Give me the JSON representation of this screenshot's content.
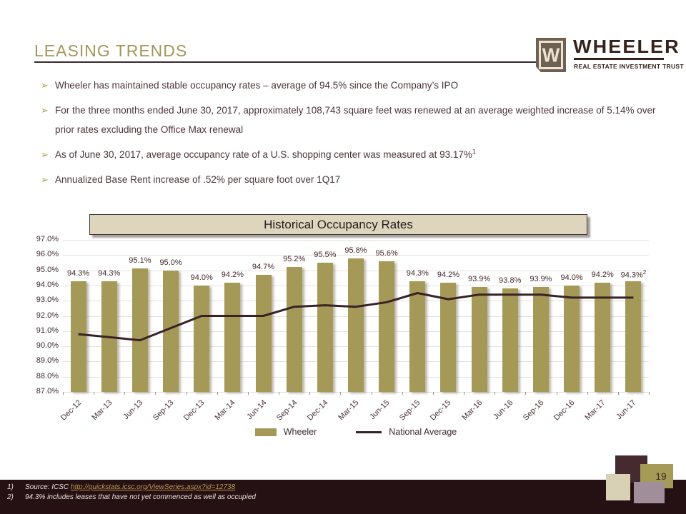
{
  "slide": {
    "title": "LEASING TRENDS",
    "page_number": "19",
    "bullet_marker": "➢"
  },
  "logo": {
    "mark_letter": "W",
    "name": "WHEELER",
    "subtitle": "REAL ESTATE INVESTMENT TRUST"
  },
  "bullets": [
    {
      "text": "Wheeler has maintained stable occupancy rates – average of 94.5% since the Company’s IPO",
      "sup": ""
    },
    {
      "text": "For the three months ended June 30, 2017, approximately 108,743 square feet was renewed at an average weighted increase of 5.14% over prior rates excluding the Office Max renewal",
      "sup": ""
    },
    {
      "text": "As of June 30, 2017, average occupancy rate of a U.S. shopping center was measured at 93.17%",
      "sup": "1"
    },
    {
      "text": "Annualized Base Rent increase of .52% per square foot over 1Q17",
      "sup": ""
    }
  ],
  "chart_data": {
    "type": "bar",
    "title": "Historical Occupancy Rates",
    "categories": [
      "Dec-12",
      "Mar-13",
      "Jun-13",
      "Sep-13",
      "Dec-13",
      "Mar-14",
      "Jun-14",
      "Sep-14",
      "Dec-14",
      "Mar-15",
      "Jun-15",
      "Sep-15",
      "Dec-15",
      "Mar-16",
      "Jun-16",
      "Sep-16",
      "Dec-16",
      "Mar-17",
      "Jun-17"
    ],
    "series": [
      {
        "name": "Wheeler",
        "type": "bar",
        "color": "#a49957",
        "values": [
          94.3,
          94.3,
          95.1,
          95.0,
          94.0,
          94.2,
          94.7,
          95.2,
          95.5,
          95.8,
          95.6,
          94.3,
          94.2,
          93.9,
          93.8,
          93.9,
          94.0,
          94.2,
          94.3
        ]
      },
      {
        "name": "National Average",
        "type": "line",
        "color": "#382225",
        "values": [
          90.8,
          90.6,
          90.4,
          91.2,
          92.0,
          92.0,
          92.0,
          92.6,
          92.7,
          92.6,
          92.9,
          93.5,
          93.1,
          93.4,
          93.4,
          93.4,
          93.2,
          93.2,
          93.2
        ]
      }
    ],
    "bar_label_superscript": {
      "index": 18,
      "text": "2"
    },
    "y_ticks": [
      "97.0%",
      "96.0%",
      "95.0%",
      "94.0%",
      "93.0%",
      "92.0%",
      "91.0%",
      "90.0%",
      "89.0%",
      "88.0%",
      "87.0%"
    ],
    "ylim": [
      87,
      97
    ],
    "grid": true,
    "legend_position": "bottom"
  },
  "footnotes": [
    {
      "num": "1)",
      "text": "Source: ICSC ",
      "link": "http://quickstats.icsc.org/ViewSeries.aspx?id=12738"
    },
    {
      "num": "2)",
      "text": "94.3% includes leases that have not yet commenced as well as occupied",
      "link": ""
    }
  ]
}
